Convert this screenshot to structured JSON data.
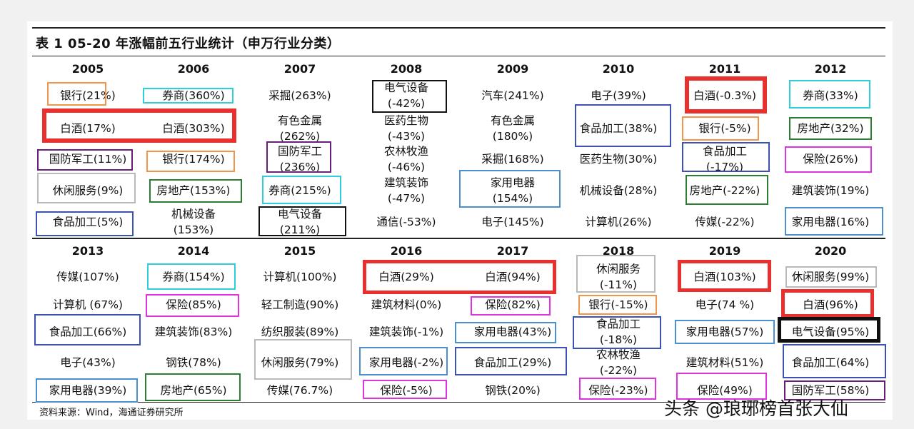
{
  "title": "表 1 05-20 年涨幅前五行业统计（申万行业分类）",
  "source": "资料来源：Wind，海通证券研究所",
  "watermark": "头条 @琅琊榜首张大仙",
  "colors": {
    "red": "#e8312f",
    "orange": "#f0964a",
    "cyan": "#2ecfd8",
    "purple": "#6a1f7a",
    "gray": "#b9b9b9",
    "green": "#2e7d32",
    "blue": "#3b52b4",
    "black": "#111111",
    "lightblue": "#4a90d0",
    "magenta": "#e033e0"
  },
  "top": {
    "years": [
      "2005",
      "2006",
      "2007",
      "2008",
      "2009",
      "2010",
      "2011",
      "2012"
    ],
    "rows": [
      [
        "银行(21%)",
        "券商(360%)",
        "采掘(263%)",
        "电气设备\n(-42%)",
        "汽车(241%)",
        "电子(39%)",
        "白酒(-0.3%)",
        "券商(33%)"
      ],
      [
        "白酒(17%)",
        "白酒(303%)",
        "有色金属\n(262%)",
        "医药生物\n(-43%)",
        "有色金属\n(180%)",
        "食品加工(38%)",
        "银行(-5%)",
        "房地产(32%)"
      ],
      [
        "国防军工(11%)",
        "银行(174%)",
        "国防军工\n(236%)",
        "农林牧渔\n(-46%)",
        "采掘(168%)",
        "医药生物(30%)",
        "食品加工\n(-17%)",
        "保险(26%)"
      ],
      [
        "休闲服务(9%)",
        "房地产(153%)",
        "券商(215%)",
        "建筑装饰\n(-47%)",
        "家用电器\n(154%)",
        "机械设备(28%)",
        "房地产(-22%)",
        "建筑装饰(19%)"
      ],
      [
        "食品加工(5%)",
        "机械设备\n(153%)",
        "电气设备\n(211%)",
        "通信(-53%)",
        "电子(145%)",
        "计算机(26%)",
        "传媒(-22%)",
        "家用电器(16%)"
      ]
    ]
  },
  "bottom": {
    "years": [
      "2013",
      "2014",
      "2015",
      "2016",
      "2017",
      "2018",
      "2019",
      "2020"
    ],
    "rows": [
      [
        "传媒(107%)",
        "券商(154%)",
        "计算机(100%)",
        "白酒(29%)",
        "白酒(94%)",
        "休闲服务\n(-11%)",
        "白酒(103%)",
        "休闲服务(99%)"
      ],
      [
        "计算机 (67%)",
        "保险(85%)",
        "轻工制造(90%)",
        "建筑材料(0%)",
        "保险(82%)",
        "银行(-15%)",
        "电子(74 %)",
        "白酒(96%)"
      ],
      [
        "食品加工(66%)",
        "建筑装饰(83%)",
        "纺织服装(89%)",
        "建筑装饰(-1%)",
        "家用电器(43%)",
        "食品加工\n(-18%)",
        "家用电器(57%)",
        "电气设备(95%)"
      ],
      [
        "电子(43%)",
        "钢铁(78%)",
        "休闲服务(79%)",
        "家用电器(-2%)",
        "食品加工(29%)",
        "农林牧渔\n(-22%)",
        "建筑材料(51%)",
        "食品加工(64%)"
      ],
      [
        "家用电器(39%)",
        "房地产(65%)",
        "传媒(76.7%)",
        "保险(-5%)",
        "钢铁(20%)",
        "保险(-23%)",
        "保险(49%)",
        "国防军工(58%)"
      ]
    ]
  }
}
